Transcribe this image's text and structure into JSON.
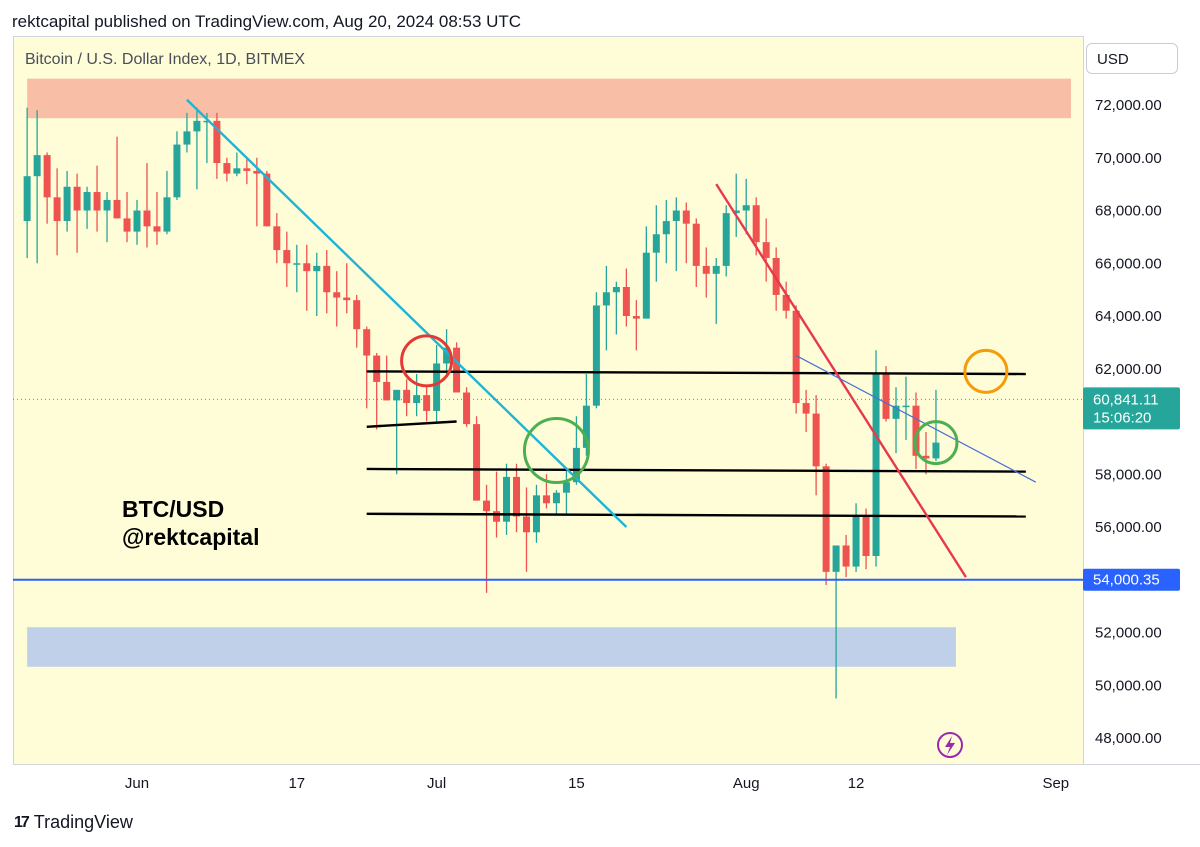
{
  "header": {
    "published": "rektcapital published on TradingView.com, Aug 20, 2024 08:53 UTC"
  },
  "symbol_title": "Bitcoin / U.S. Dollar Index, 1D, BITMEX",
  "currency_button": "USD",
  "watermark": {
    "line1": "BTC/USD",
    "line2": "@rektcapital"
  },
  "footer": {
    "brand": "TradingView",
    "logo_glyph": "17"
  },
  "chart_data": {
    "type": "candlestick",
    "title": "Bitcoin / U.S. Dollar Index, 1D, BITMEX",
    "ylim": [
      47000,
      74000
    ],
    "y_ticks": [
      48000,
      50000,
      52000,
      54000,
      56000,
      58000,
      60000,
      62000,
      64000,
      66000,
      68000,
      70000,
      72000
    ],
    "y_tick_labels": [
      "48,000.00",
      "50,000.00",
      "52,000.00",
      "54,000.00",
      "56,000.00",
      "58,000.00",
      "60,000.00",
      "62,000.00",
      "64,000.00",
      "66,000.00",
      "68,000.00",
      "70,000.00",
      "72,000.00"
    ],
    "x_labels": [
      {
        "label": "Jun",
        "date": "2024-06-01"
      },
      {
        "label": "17",
        "date": "2024-06-17"
      },
      {
        "label": "Jul",
        "date": "2024-07-01"
      },
      {
        "label": "15",
        "date": "2024-07-15"
      },
      {
        "label": "Aug",
        "date": "2024-08-01"
      },
      {
        "label": "12",
        "date": "2024-08-12"
      },
      {
        "label": "Sep",
        "date": "2024-09-01"
      }
    ],
    "x_range": [
      "2024-05-21",
      "2024-09-01"
    ],
    "current_price": {
      "value": 60841.11,
      "label": "60,841.11",
      "countdown": "15:06:20"
    },
    "marked_level": {
      "value": 54000.35,
      "label": "54,000.35"
    },
    "zones": [
      {
        "name": "resistance",
        "from_date": "2024-05-21",
        "to_date": "2024-09-01",
        "y_low": 71500,
        "y_high": 73000,
        "color": "#f8bfa6"
      },
      {
        "name": "support",
        "from_date": "2024-05-21",
        "to_date": "2024-08-22",
        "y_low": 50700,
        "y_high": 52200,
        "color": "#bfd0e8"
      }
    ],
    "horizontal_lines": [
      {
        "from": "2024-06-24",
        "to": "2024-08-29",
        "y0": 61900,
        "y1": 61800,
        "color": "#000000"
      },
      {
        "from": "2024-06-24",
        "to": "2024-07-03",
        "y0": 59800,
        "y1": 60000,
        "color": "#000000"
      },
      {
        "from": "2024-06-24",
        "to": "2024-08-29",
        "y0": 58200,
        "y1": 58100,
        "color": "#000000"
      },
      {
        "from": "2024-06-24",
        "to": "2024-08-29",
        "y0": 56500,
        "y1": 56400,
        "color": "#000000"
      }
    ],
    "trend_lines": [
      {
        "from": "2024-06-06",
        "to": "2024-07-20",
        "y0": 72200,
        "y1": 56000,
        "color": "#1fb4d6"
      },
      {
        "from": "2024-07-29",
        "to": "2024-08-23",
        "y0": 69000,
        "y1": 54100,
        "color": "#e8384f"
      },
      {
        "from": "2024-08-06",
        "to": "2024-08-30",
        "y0": 62500,
        "y1": 57700,
        "color": "#4a6fd4"
      }
    ],
    "annotations": [
      {
        "date": "2024-06-30",
        "y": 62300,
        "color": "#e53935"
      },
      {
        "date": "2024-07-13",
        "y": 58900,
        "color": "#4caf50"
      },
      {
        "date": "2024-08-20",
        "y": 59200,
        "color": "#4caf50"
      },
      {
        "date": "2024-08-25",
        "y": 61900,
        "color": "#f59c0a"
      }
    ],
    "candles": [
      {
        "date": "2024-05-21",
        "o": 67600,
        "h": 71900,
        "l": 66200,
        "c": 69300
      },
      {
        "date": "2024-05-22",
        "o": 69300,
        "h": 71800,
        "l": 66000,
        "c": 70100
      },
      {
        "date": "2024-05-23",
        "o": 70100,
        "h": 70200,
        "l": 67500,
        "c": 68500
      },
      {
        "date": "2024-05-24",
        "o": 68500,
        "h": 69600,
        "l": 66300,
        "c": 67600
      },
      {
        "date": "2024-05-25",
        "o": 67600,
        "h": 69500,
        "l": 67200,
        "c": 68900
      },
      {
        "date": "2024-05-26",
        "o": 68900,
        "h": 69400,
        "l": 66400,
        "c": 68000
      },
      {
        "date": "2024-05-27",
        "o": 68000,
        "h": 68900,
        "l": 67300,
        "c": 68700
      },
      {
        "date": "2024-05-28",
        "o": 68700,
        "h": 69700,
        "l": 67200,
        "c": 68000
      },
      {
        "date": "2024-05-29",
        "o": 68000,
        "h": 68700,
        "l": 66800,
        "c": 68400
      },
      {
        "date": "2024-05-30",
        "o": 68400,
        "h": 70800,
        "l": 67700,
        "c": 67700
      },
      {
        "date": "2024-05-31",
        "o": 67700,
        "h": 68700,
        "l": 66800,
        "c": 67200
      },
      {
        "date": "2024-06-01",
        "o": 67200,
        "h": 68400,
        "l": 66700,
        "c": 68000
      },
      {
        "date": "2024-06-02",
        "o": 68000,
        "h": 69800,
        "l": 66600,
        "c": 67400
      },
      {
        "date": "2024-06-03",
        "o": 67400,
        "h": 68700,
        "l": 66700,
        "c": 67200
      },
      {
        "date": "2024-06-04",
        "o": 67200,
        "h": 69500,
        "l": 67100,
        "c": 68500
      },
      {
        "date": "2024-06-05",
        "o": 68500,
        "h": 71000,
        "l": 68400,
        "c": 70500
      },
      {
        "date": "2024-06-06",
        "o": 70500,
        "h": 71700,
        "l": 70200,
        "c": 71000
      },
      {
        "date": "2024-06-07",
        "o": 71000,
        "h": 71900,
        "l": 68800,
        "c": 71400
      },
      {
        "date": "2024-06-08",
        "o": 71400,
        "h": 71700,
        "l": 69800,
        "c": 71400
      },
      {
        "date": "2024-06-09",
        "o": 71400,
        "h": 71700,
        "l": 69200,
        "c": 69800
      },
      {
        "date": "2024-06-10",
        "o": 69800,
        "h": 70000,
        "l": 69100,
        "c": 69400
      },
      {
        "date": "2024-06-11",
        "o": 69400,
        "h": 70200,
        "l": 69300,
        "c": 69600
      },
      {
        "date": "2024-06-12",
        "o": 69600,
        "h": 70000,
        "l": 69000,
        "c": 69500
      },
      {
        "date": "2024-06-13",
        "o": 69500,
        "h": 70000,
        "l": 67400,
        "c": 69400
      },
      {
        "date": "2024-06-14",
        "o": 69400,
        "h": 69500,
        "l": 67400,
        "c": 67400
      },
      {
        "date": "2024-06-15",
        "o": 67400,
        "h": 67900,
        "l": 66000,
        "c": 66500
      },
      {
        "date": "2024-06-16",
        "o": 66500,
        "h": 67200,
        "l": 65100,
        "c": 66000
      },
      {
        "date": "2024-06-17",
        "o": 66000,
        "h": 66700,
        "l": 64900,
        "c": 66000
      },
      {
        "date": "2024-06-18",
        "o": 66000,
        "h": 66700,
        "l": 64200,
        "c": 65700
      },
      {
        "date": "2024-06-19",
        "o": 65700,
        "h": 66400,
        "l": 64000,
        "c": 65900
      },
      {
        "date": "2024-06-20",
        "o": 65900,
        "h": 66500,
        "l": 64100,
        "c": 64900
      },
      {
        "date": "2024-06-21",
        "o": 64900,
        "h": 65700,
        "l": 63600,
        "c": 64700
      },
      {
        "date": "2024-06-22",
        "o": 64700,
        "h": 66000,
        "l": 64100,
        "c": 64600
      },
      {
        "date": "2024-06-23",
        "o": 64600,
        "h": 64800,
        "l": 62800,
        "c": 63500
      },
      {
        "date": "2024-06-24",
        "o": 63500,
        "h": 63600,
        "l": 60500,
        "c": 62500
      },
      {
        "date": "2024-06-25",
        "o": 62500,
        "h": 62600,
        "l": 59700,
        "c": 61500
      },
      {
        "date": "2024-06-26",
        "o": 61500,
        "h": 62500,
        "l": 60800,
        "c": 60800
      },
      {
        "date": "2024-06-27",
        "o": 60800,
        "h": 61200,
        "l": 58000,
        "c": 61200
      },
      {
        "date": "2024-06-28",
        "o": 61200,
        "h": 61600,
        "l": 60200,
        "c": 60700
      },
      {
        "date": "2024-06-29",
        "o": 60700,
        "h": 61800,
        "l": 60200,
        "c": 61000
      },
      {
        "date": "2024-06-30",
        "o": 61000,
        "h": 61300,
        "l": 60000,
        "c": 60400
      },
      {
        "date": "2024-07-01",
        "o": 60400,
        "h": 62900,
        "l": 60000,
        "c": 62200
      },
      {
        "date": "2024-07-02",
        "o": 62200,
        "h": 63500,
        "l": 61700,
        "c": 62800
      },
      {
        "date": "2024-07-03",
        "o": 62800,
        "h": 63000,
        "l": 61200,
        "c": 61100
      },
      {
        "date": "2024-07-04",
        "o": 61100,
        "h": 61300,
        "l": 59800,
        "c": 59900
      },
      {
        "date": "2024-07-05",
        "o": 59900,
        "h": 60200,
        "l": 57000,
        "c": 57000
      },
      {
        "date": "2024-07-06",
        "o": 57000,
        "h": 57600,
        "l": 53500,
        "c": 56600
      },
      {
        "date": "2024-07-07",
        "o": 56600,
        "h": 58100,
        "l": 55600,
        "c": 56200
      },
      {
        "date": "2024-07-08",
        "o": 56200,
        "h": 58400,
        "l": 55700,
        "c": 57900
      },
      {
        "date": "2024-07-09",
        "o": 57900,
        "h": 58400,
        "l": 55800,
        "c": 56400
      },
      {
        "date": "2024-07-10",
        "o": 56400,
        "h": 57500,
        "l": 54300,
        "c": 55800
      },
      {
        "date": "2024-07-11",
        "o": 55800,
        "h": 57600,
        "l": 55400,
        "c": 57200
      },
      {
        "date": "2024-07-12",
        "o": 57200,
        "h": 58000,
        "l": 56700,
        "c": 56900
      },
      {
        "date": "2024-07-13",
        "o": 56900,
        "h": 57400,
        "l": 56500,
        "c": 57300
      },
      {
        "date": "2024-07-14",
        "o": 57300,
        "h": 58200,
        "l": 56500,
        "c": 57700
      },
      {
        "date": "2024-07-15",
        "o": 57700,
        "h": 60200,
        "l": 57600,
        "c": 59000
      },
      {
        "date": "2024-07-16",
        "o": 59000,
        "h": 61800,
        "l": 58700,
        "c": 60600
      },
      {
        "date": "2024-07-17",
        "o": 60600,
        "h": 64900,
        "l": 60500,
        "c": 64400
      },
      {
        "date": "2024-07-18",
        "o": 64400,
        "h": 65900,
        "l": 62700,
        "c": 64900
      },
      {
        "date": "2024-07-19",
        "o": 64900,
        "h": 65300,
        "l": 63300,
        "c": 65100
      },
      {
        "date": "2024-07-20",
        "o": 65100,
        "h": 65800,
        "l": 63600,
        "c": 64000
      },
      {
        "date": "2024-07-21",
        "o": 64000,
        "h": 64600,
        "l": 62700,
        "c": 63900
      },
      {
        "date": "2024-07-22",
        "o": 63900,
        "h": 67400,
        "l": 63900,
        "c": 66400
      },
      {
        "date": "2024-07-23",
        "o": 66400,
        "h": 68200,
        "l": 65300,
        "c": 67100
      },
      {
        "date": "2024-07-24",
        "o": 67100,
        "h": 68400,
        "l": 66000,
        "c": 67600
      },
      {
        "date": "2024-07-25",
        "o": 67600,
        "h": 68500,
        "l": 65700,
        "c": 68000
      },
      {
        "date": "2024-07-26",
        "o": 68000,
        "h": 68300,
        "l": 66000,
        "c": 67500
      },
      {
        "date": "2024-07-27",
        "o": 67500,
        "h": 67700,
        "l": 65100,
        "c": 65900
      },
      {
        "date": "2024-07-28",
        "o": 65900,
        "h": 66600,
        "l": 64700,
        "c": 65600
      },
      {
        "date": "2024-07-29",
        "o": 65600,
        "h": 66200,
        "l": 63700,
        "c": 65900
      },
      {
        "date": "2024-07-30",
        "o": 65900,
        "h": 68200,
        "l": 65500,
        "c": 67900
      },
      {
        "date": "2024-07-31",
        "o": 67900,
        "h": 69400,
        "l": 67000,
        "c": 68000
      },
      {
        "date": "2024-08-01",
        "o": 68000,
        "h": 69200,
        "l": 67100,
        "c": 68200
      },
      {
        "date": "2024-08-02",
        "o": 68200,
        "h": 68500,
        "l": 66300,
        "c": 66800
      },
      {
        "date": "2024-08-03",
        "o": 66800,
        "h": 67700,
        "l": 65300,
        "c": 66200
      },
      {
        "date": "2024-08-04",
        "o": 66200,
        "h": 66600,
        "l": 64200,
        "c": 64800
      },
      {
        "date": "2024-08-05",
        "o": 64800,
        "h": 65300,
        "l": 63900,
        "c": 64200
      },
      {
        "date": "2024-08-06",
        "o": 64200,
        "h": 64400,
        "l": 60300,
        "c": 60700
      },
      {
        "date": "2024-08-07",
        "o": 60700,
        "h": 61200,
        "l": 59600,
        "c": 60300
      },
      {
        "date": "2024-08-08",
        "o": 60300,
        "h": 61000,
        "l": 57200,
        "c": 58300
      },
      {
        "date": "2024-08-09",
        "o": 58300,
        "h": 58400,
        "l": 53800,
        "c": 54300
      },
      {
        "date": "2024-08-10",
        "o": 54300,
        "h": 55300,
        "l": 49500,
        "c": 55300
      },
      {
        "date": "2024-08-11",
        "o": 55300,
        "h": 55700,
        "l": 54100,
        "c": 54500
      },
      {
        "date": "2024-08-12",
        "o": 54500,
        "h": 56900,
        "l": 54300,
        "c": 56400
      },
      {
        "date": "2024-08-13",
        "o": 56400,
        "h": 56700,
        "l": 54400,
        "c": 54900
      },
      {
        "date": "2024-08-14",
        "o": 54900,
        "h": 62700,
        "l": 54500,
        "c": 61800
      },
      {
        "date": "2024-08-15",
        "o": 61800,
        "h": 62100,
        "l": 60000,
        "c": 60100
      },
      {
        "date": "2024-08-16",
        "o": 60100,
        "h": 61300,
        "l": 58800,
        "c": 60600
      },
      {
        "date": "2024-08-17",
        "o": 60600,
        "h": 61700,
        "l": 59300,
        "c": 60600
      },
      {
        "date": "2024-08-18",
        "o": 60600,
        "h": 61100,
        "l": 58200,
        "c": 58700
      },
      {
        "date": "2024-08-19",
        "o": 58700,
        "h": 59600,
        "l": 58000,
        "c": 58600
      },
      {
        "date": "2024-08-20",
        "o": 58600,
        "h": 61200,
        "l": 58500,
        "c": 59200
      }
    ]
  }
}
